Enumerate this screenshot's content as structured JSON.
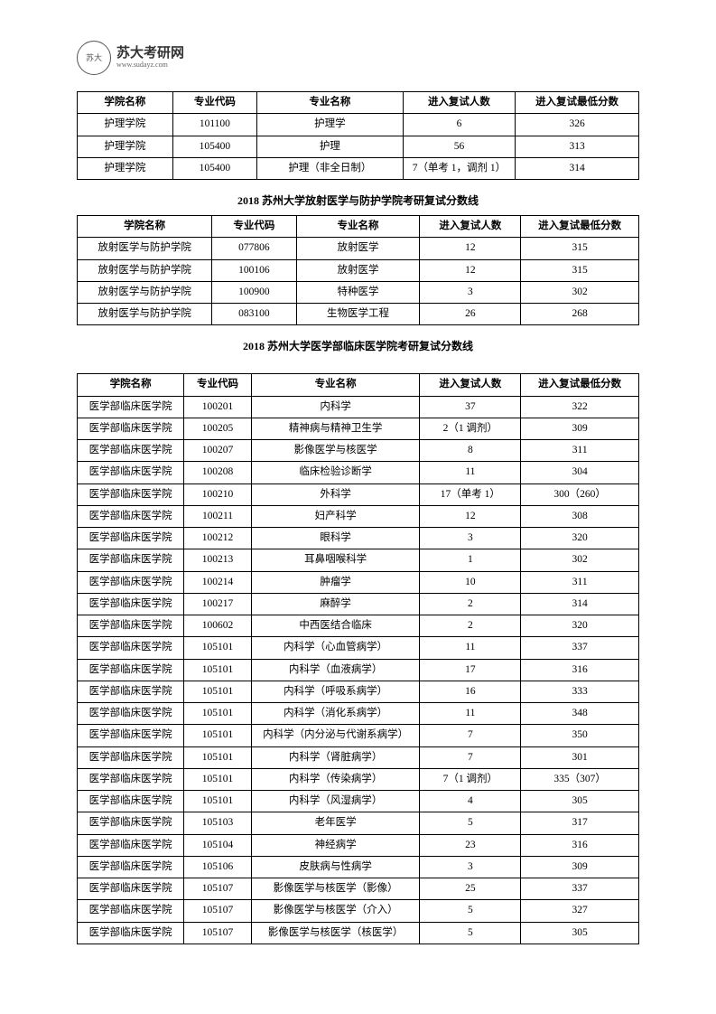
{
  "logo": {
    "brand": "苏大考研网",
    "url": "www.sudayz.com",
    "mark": "苏大"
  },
  "table1": {
    "columns": [
      "学院名称",
      "专业代码",
      "专业名称",
      "进入复试人数",
      "进入复试最低分数"
    ],
    "widths": [
      "17%",
      "15%",
      "26%",
      "20%",
      "22%"
    ],
    "rows": [
      [
        "护理学院",
        "101100",
        "护理学",
        "6",
        "326"
      ],
      [
        "护理学院",
        "105400",
        "护理",
        "56",
        "313"
      ],
      [
        "护理学院",
        "105400",
        "护理（非全日制）",
        "7（单考 1，调剂 1）",
        "314"
      ]
    ]
  },
  "section2_title": "2018 苏州大学放射医学与防护学院考研复试分数线",
  "table2": {
    "columns": [
      "学院名称",
      "专业代码",
      "专业名称",
      "进入复试人数",
      "进入复试最低分数"
    ],
    "widths": [
      "24%",
      "15%",
      "22%",
      "18%",
      "21%"
    ],
    "rows": [
      [
        "放射医学与防护学院",
        "077806",
        "放射医学",
        "12",
        "315"
      ],
      [
        "放射医学与防护学院",
        "100106",
        "放射医学",
        "12",
        "315"
      ],
      [
        "放射医学与防护学院",
        "100900",
        "特种医学",
        "3",
        "302"
      ],
      [
        "放射医学与防护学院",
        "083100",
        "生物医学工程",
        "26",
        "268"
      ]
    ]
  },
  "section3_title": "2018 苏州大学医学部临床医学院考研复试分数线",
  "table3": {
    "columns": [
      "学院名称",
      "专业代码",
      "专业名称",
      "进入复试人数",
      "进入复试最低分数"
    ],
    "widths": [
      "19%",
      "12%",
      "30%",
      "18%",
      "21%"
    ],
    "rows": [
      [
        "医学部临床医学院",
        "100201",
        "内科学",
        "37",
        "322"
      ],
      [
        "医学部临床医学院",
        "100205",
        "精神病与精神卫生学",
        "2（1 调剂）",
        "309"
      ],
      [
        "医学部临床医学院",
        "100207",
        "影像医学与核医学",
        "8",
        "311"
      ],
      [
        "医学部临床医学院",
        "100208",
        "临床检验诊断学",
        "11",
        "304"
      ],
      [
        "医学部临床医学院",
        "100210",
        "外科学",
        "17（单考 1）",
        "300（260）"
      ],
      [
        "医学部临床医学院",
        "100211",
        "妇产科学",
        "12",
        "308"
      ],
      [
        "医学部临床医学院",
        "100212",
        "眼科学",
        "3",
        "320"
      ],
      [
        "医学部临床医学院",
        "100213",
        "耳鼻咽喉科学",
        "1",
        "302"
      ],
      [
        "医学部临床医学院",
        "100214",
        "肿瘤学",
        "10",
        "311"
      ],
      [
        "医学部临床医学院",
        "100217",
        "麻醉学",
        "2",
        "314"
      ],
      [
        "医学部临床医学院",
        "100602",
        "中西医结合临床",
        "2",
        "320"
      ],
      [
        "医学部临床医学院",
        "105101",
        "内科学（心血管病学）",
        "11",
        "337"
      ],
      [
        "医学部临床医学院",
        "105101",
        "内科学（血液病学）",
        "17",
        "316"
      ],
      [
        "医学部临床医学院",
        "105101",
        "内科学（呼吸系病学）",
        "16",
        "333"
      ],
      [
        "医学部临床医学院",
        "105101",
        "内科学（消化系病学）",
        "11",
        "348"
      ],
      [
        "医学部临床医学院",
        "105101",
        "内科学（内分泌与代谢系病学）",
        "7",
        "350"
      ],
      [
        "医学部临床医学院",
        "105101",
        "内科学（肾脏病学）",
        "7",
        "301"
      ],
      [
        "医学部临床医学院",
        "105101",
        "内科学（传染病学）",
        "7（1 调剂）",
        "335（307）"
      ],
      [
        "医学部临床医学院",
        "105101",
        "内科学（风湿病学）",
        "4",
        "305"
      ],
      [
        "医学部临床医学院",
        "105103",
        "老年医学",
        "5",
        "317"
      ],
      [
        "医学部临床医学院",
        "105104",
        "神经病学",
        "23",
        "316"
      ],
      [
        "医学部临床医学院",
        "105106",
        "皮肤病与性病学",
        "3",
        "309"
      ],
      [
        "医学部临床医学院",
        "105107",
        "影像医学与核医学（影像）",
        "25",
        "337"
      ],
      [
        "医学部临床医学院",
        "105107",
        "影像医学与核医学（介入）",
        "5",
        "327"
      ],
      [
        "医学部临床医学院",
        "105107",
        "影像医学与核医学（核医学）",
        "5",
        "305"
      ]
    ]
  }
}
